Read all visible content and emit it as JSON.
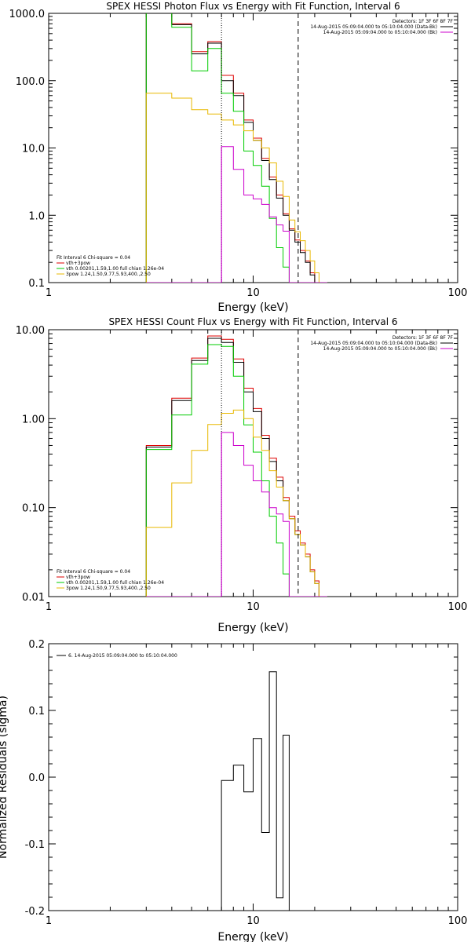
{
  "chart_data": [
    {
      "type": "line",
      "title": "SPEX HESSI Photon Flux vs Energy with Fit Function, Interval 6",
      "xlabel": "Energy (keV)",
      "ylabel": "",
      "xscale": "log",
      "yscale": "log",
      "xlim": [
        1,
        100
      ],
      "ylim": [
        0.1,
        1000
      ],
      "x_ticks": [
        "1",
        "10",
        "100"
      ],
      "y_ticks": [
        "0.1",
        "1.0",
        "10.0",
        "100.0",
        "1000.0"
      ],
      "vlines": [
        {
          "x": 7.0,
          "style": "dotted",
          "color": "#000000"
        },
        {
          "x": 16.6,
          "style": "dashed",
          "color": "#000000"
        },
        {
          "x": 7.0,
          "style": "solid",
          "color": "#cc00cc"
        }
      ],
      "energy_edges": [
        3,
        4,
        5,
        6,
        7,
        8,
        9,
        10,
        11,
        12,
        13,
        14,
        15,
        16,
        17,
        18,
        19,
        20,
        21,
        22,
        23
      ],
      "series": [
        {
          "name": "vth+3pow",
          "color": "#dd0000",
          "values": [
            1200,
            700,
            270,
            380,
            120,
            65,
            26,
            14,
            7,
            3.7,
            2,
            1.05,
            0.63,
            0.43,
            0.3,
            0.21,
            0.14,
            0.1,
            0.1,
            0.1
          ]
        },
        {
          "name": "",
          "color": "#000000",
          "values": [
            1150,
            680,
            250,
            360,
            100,
            60,
            24,
            13,
            6.5,
            3.4,
            1.8,
            1.0,
            0.6,
            0.4,
            0.28,
            0.2,
            0.13,
            0.1,
            0.1,
            0.1
          ]
        },
        {
          "name": "vth 0.00201,1.59,1.00  full chian 1.26e-04",
          "color": "#00cc00",
          "values": [
            1100,
            620,
            140,
            300,
            65,
            35,
            9,
            5.5,
            2.7,
            0.9,
            0.33,
            0.17,
            0.1,
            0.1,
            0.1,
            0.1,
            0.1,
            0.1,
            0.1,
            0.1
          ]
        },
        {
          "name": "3pow 1.24,1.50,9.77,5.93,400.,2.50",
          "color": "#e8b800",
          "values": [
            65,
            55,
            37,
            32,
            26,
            22,
            18,
            13,
            10,
            6,
            3.2,
            1.9,
            0.85,
            0.57,
            0.42,
            0.3,
            0.21,
            0.14,
            0.1,
            0.1
          ]
        },
        {
          "name": "",
          "color": "#cc00cc",
          "values": [
            0.1,
            0.1,
            0.1,
            0.1,
            10.5,
            4.8,
            2,
            1.75,
            1.45,
            0.95,
            0.72,
            0.58,
            0.1,
            0.1,
            0.1,
            0.1,
            0.1,
            0.1,
            0.1,
            0.1
          ]
        }
      ]
    },
    {
      "type": "line",
      "title": "SPEX HESSI Count Flux vs Energy with Fit Function, Interval 6",
      "xlabel": "Energy (keV)",
      "ylabel": "",
      "xscale": "log",
      "yscale": "log",
      "xlim": [
        1,
        100
      ],
      "ylim": [
        0.01,
        10
      ],
      "x_ticks": [
        "1",
        "10",
        "100"
      ],
      "y_ticks": [
        "0.01",
        "0.10",
        "1.00",
        "10.00"
      ],
      "vlines": [
        {
          "x": 7.0,
          "style": "dotted",
          "color": "#000000"
        },
        {
          "x": 16.6,
          "style": "dashed",
          "color": "#000000"
        },
        {
          "x": 7.0,
          "style": "solid",
          "color": "#cc00cc"
        }
      ],
      "energy_edges": [
        3,
        4,
        5,
        6,
        7,
        8,
        9,
        10,
        11,
        12,
        13,
        14,
        15,
        16,
        17,
        18,
        19,
        20,
        21,
        22,
        23
      ],
      "series": [
        {
          "name": "vth+3pow",
          "color": "#dd0000",
          "values": [
            0.5,
            1.7,
            4.8,
            8.5,
            7.8,
            4.7,
            2.2,
            1.3,
            0.65,
            0.36,
            0.22,
            0.13,
            0.08,
            0.055,
            0.04,
            0.03,
            0.02,
            0.015,
            0.01,
            0.01
          ]
        },
        {
          "name": "",
          "color": "#000000",
          "values": [
            0.48,
            1.6,
            4.5,
            8.0,
            7.2,
            4.3,
            2.0,
            1.2,
            0.6,
            0.33,
            0.2,
            0.12,
            0.075,
            0.05,
            0.038,
            0.028,
            0.019,
            0.014,
            0.01,
            0.01
          ]
        },
        {
          "name": "vth 0.00201,1.59,1.00  full chian 1.26e-04",
          "color": "#00cc00",
          "values": [
            0.45,
            1.1,
            4.1,
            6.8,
            6.5,
            3.0,
            0.85,
            0.42,
            0.2,
            0.08,
            0.04,
            0.018,
            0.01,
            0.01,
            0.01,
            0.01,
            0.01,
            0.01,
            0.01,
            0.01
          ]
        },
        {
          "name": "3pow 1.24,1.50,9.77,5.93,400.,2.50",
          "color": "#e8b800",
          "values": [
            0.06,
            0.19,
            0.44,
            0.86,
            1.15,
            1.25,
            1.0,
            0.62,
            0.44,
            0.26,
            0.17,
            0.12,
            0.075,
            0.05,
            0.038,
            0.028,
            0.019,
            0.014,
            0.01,
            0.01
          ]
        },
        {
          "name": "",
          "color": "#cc00cc",
          "values": [
            0.01,
            0.01,
            0.01,
            0.01,
            0.7,
            0.5,
            0.3,
            0.2,
            0.15,
            0.1,
            0.085,
            0.07,
            0.01,
            0.01,
            0.01,
            0.01,
            0.01,
            0.01,
            0.01,
            0.01
          ]
        }
      ]
    },
    {
      "type": "line",
      "title": "",
      "xlabel": "Energy (keV)",
      "ylabel": "Normalized Residuals (sigma)",
      "xscale": "log",
      "yscale": "linear",
      "xlim": [
        1,
        100
      ],
      "ylim": [
        -0.2,
        0.2
      ],
      "x_ticks": [
        "1",
        "10",
        "100"
      ],
      "y_ticks": [
        "-0.2",
        "-0.1",
        "0.0",
        "0.1",
        "0.2"
      ],
      "energy_edges": [
        7,
        8,
        9,
        10,
        11,
        12,
        13,
        14,
        15,
        16.6
      ],
      "series": [
        {
          "name": "6. 14-Aug-2015 05:09:04.000 to 05:10:04.000",
          "color": "#000000",
          "values": [
            -0.005,
            0.018,
            -0.022,
            0.058,
            -0.083,
            0.158,
            -0.181,
            0.063,
            -0.2
          ]
        }
      ]
    }
  ],
  "legend_common": {
    "detectors": "Detectors: 1F 3F 6F 8F 7F",
    "time_black": "14-Aug-2015 05:09:04.000 to 05:10:04.000 (Data-Bk)",
    "time_magenta": "14-Aug-2015 05:09:04.000 to 05:10:04.000 (Bk)",
    "fit_interval": "Fit Interval  6    Chi-square = 0.04",
    "fit_rows": [
      {
        "label": "vth+3pow",
        "color": "#dd0000"
      },
      {
        "label": "vth 0.00201,1.59,1.00  full chian 1.26e-04",
        "color": "#00cc00"
      },
      {
        "label": "3pow 1.24,1.50,9.77,5.93,400.,2.50",
        "color": "#e8b800"
      }
    ],
    "time_black_color": "#000000",
    "time_magenta_color": "#cc00cc"
  }
}
